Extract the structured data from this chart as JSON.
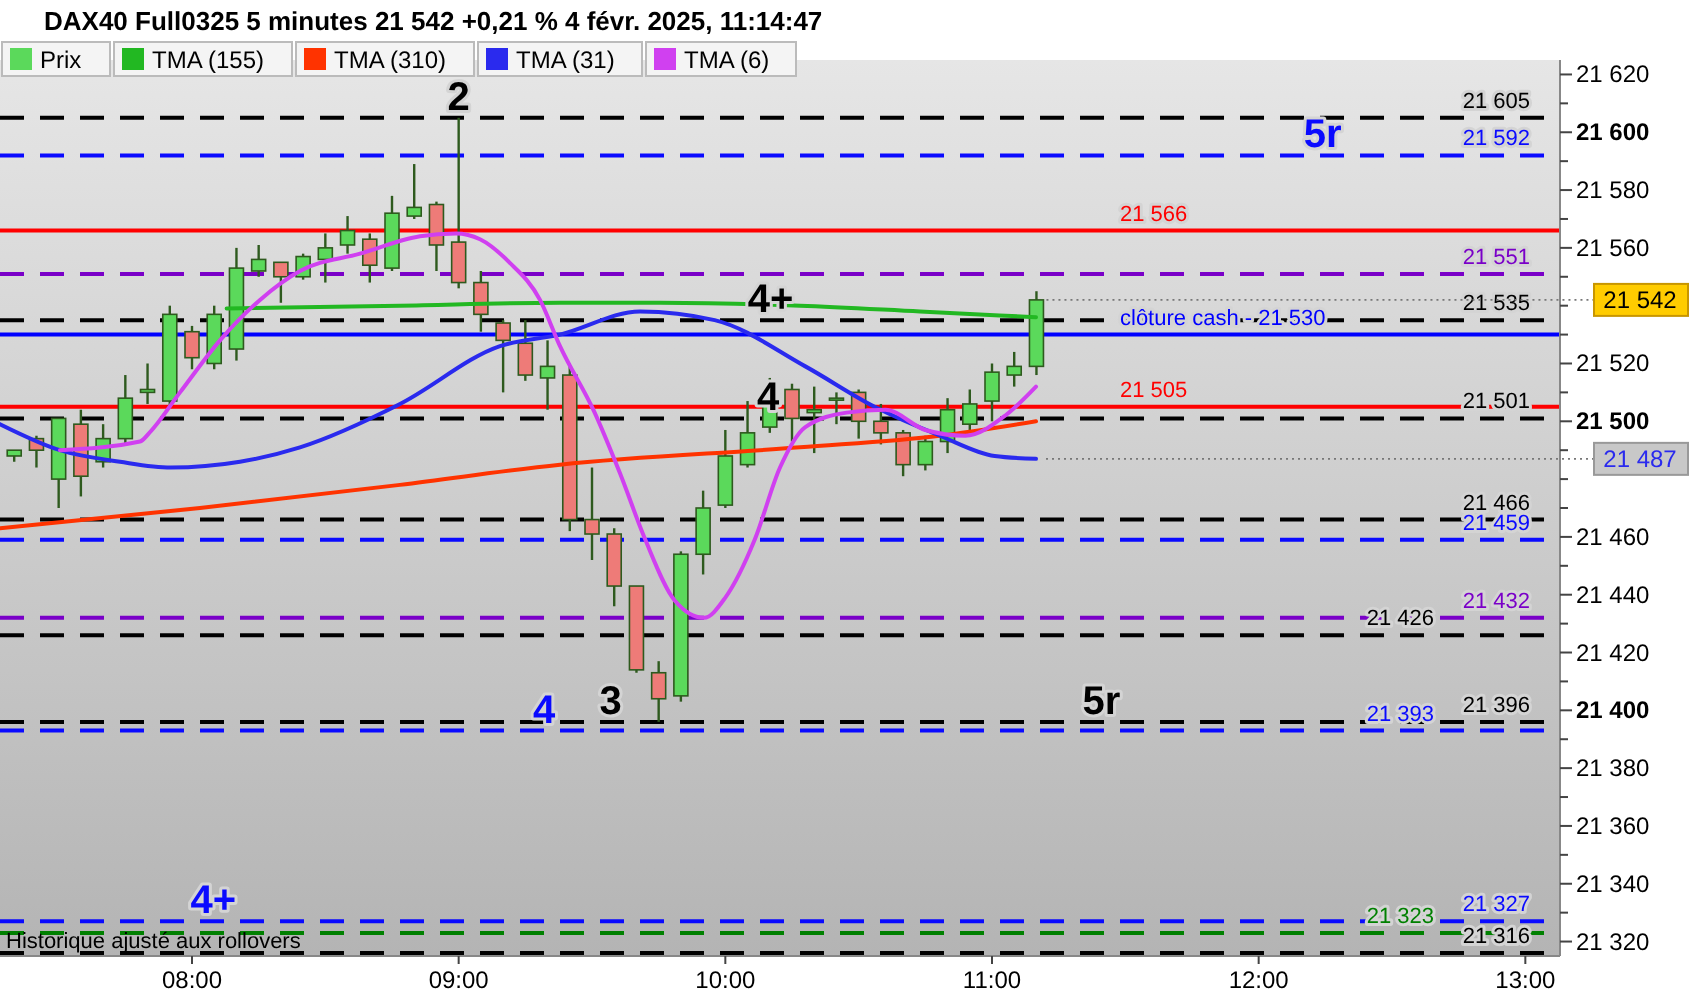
{
  "chart_data": {
    "type": "candlestick",
    "title": "DAX40 Full0325 5 minutes 21 542 +0,21 % 4 févr. 2025, 11:14:47",
    "legend": "top left",
    "grid": false,
    "xlim": [
      7.28,
      13.13
    ],
    "xticks": [
      {
        "value": 8,
        "label": "08:00"
      },
      {
        "value": 9,
        "label": "09:00"
      },
      {
        "value": 10,
        "label": "10:00"
      },
      {
        "value": 11,
        "label": "11:00"
      },
      {
        "value": 12,
        "label": "12:00"
      },
      {
        "value": 13,
        "label": "13:00"
      }
    ],
    "ylim": [
      21315,
      21625
    ],
    "yticks": [
      {
        "value": 21320,
        "label": "21 320"
      },
      {
        "value": 21330,
        "label": null
      },
      {
        "value": 21340,
        "label": "21 340"
      },
      {
        "value": 21350,
        "label": null
      },
      {
        "value": 21360,
        "label": "21 360"
      },
      {
        "value": 21370,
        "label": null
      },
      {
        "value": 21380,
        "label": "21 380"
      },
      {
        "value": 21390,
        "label": null
      },
      {
        "value": 21400,
        "label": "21 400"
      },
      {
        "value": 21410,
        "label": null
      },
      {
        "value": 21420,
        "label": "21 420"
      },
      {
        "value": 21430,
        "label": null
      },
      {
        "value": 21440,
        "label": "21 440"
      },
      {
        "value": 21450,
        "label": null
      },
      {
        "value": 21460,
        "label": "21 460"
      },
      {
        "value": 21470,
        "label": null
      },
      {
        "value": 21480,
        "label": null
      },
      {
        "value": 21490,
        "label": null
      },
      {
        "value": 21500,
        "label": "21 500"
      },
      {
        "value": 21510,
        "label": null
      },
      {
        "value": 21520,
        "label": "21 520"
      },
      {
        "value": 21530,
        "label": null
      },
      {
        "value": 21540,
        "label": null
      },
      {
        "value": 21550,
        "label": null
      },
      {
        "value": 21560,
        "label": "21 560"
      },
      {
        "value": 21570,
        "label": null
      },
      {
        "value": 21580,
        "label": "21 580"
      },
      {
        "value": 21590,
        "label": null
      },
      {
        "value": 21600,
        "label": "21 600"
      },
      {
        "value": 21610,
        "label": null
      },
      {
        "value": 21620,
        "label": "21 620"
      }
    ],
    "series": [
      {
        "name": "Prix",
        "type": "candlestick",
        "color": "#5bd95b",
        "x": [
          7.3333,
          7.4167,
          7.5,
          7.5833,
          7.6667,
          7.75,
          7.8333,
          7.9167,
          8,
          8.0833,
          8.1667,
          8.25,
          8.3333,
          8.4167,
          8.5,
          8.5833,
          8.6667,
          8.75,
          8.8333,
          8.9167,
          9,
          9.0833,
          9.1667,
          9.25,
          9.3333,
          9.4167,
          9.5,
          9.5833,
          9.6667,
          9.75,
          9.8333,
          9.9167,
          10,
          10.0833,
          10.1667,
          10.25,
          10.3333,
          10.4167,
          10.5,
          10.5833,
          10.6667,
          10.75,
          10.8333,
          10.9167,
          11,
          11.0833,
          11.1667
        ],
        "ohlc": [
          [
            21488,
            21490,
            21486,
            21490
          ],
          [
            21494,
            21495,
            21484,
            21490
          ],
          [
            21480,
            21501,
            21470,
            21501
          ],
          [
            21499,
            21504,
            21474,
            21481
          ],
          [
            21486,
            21499,
            21484,
            21494
          ],
          [
            21494,
            21516,
            21492,
            21508
          ],
          [
            21510,
            21520,
            21506,
            21511
          ],
          [
            21507,
            21540,
            21505,
            21537
          ],
          [
            21531,
            21533,
            21518,
            21522
          ],
          [
            21520,
            21540,
            21518,
            21537
          ],
          [
            21525,
            21560,
            21521,
            21553
          ],
          [
            21552,
            21561,
            21550,
            21556
          ],
          [
            21555,
            21555,
            21541,
            21550
          ],
          [
            21550,
            21558,
            21549,
            21557
          ],
          [
            21556,
            21565,
            21548,
            21560
          ],
          [
            21561,
            21571,
            21558,
            21566
          ],
          [
            21563,
            21565,
            21548,
            21554
          ],
          [
            21553,
            21578,
            21552,
            21572
          ],
          [
            21571,
            21589,
            21570,
            21574
          ],
          [
            21575,
            21576,
            21552,
            21561
          ],
          [
            21562,
            21605,
            21546,
            21548
          ],
          [
            21548,
            21552,
            21531,
            21537
          ],
          [
            21534,
            21535,
            21510,
            21528
          ],
          [
            21527,
            21535,
            21514,
            21516
          ],
          [
            21515,
            21528,
            21504,
            21519
          ],
          [
            21516,
            21520,
            21462,
            21466
          ],
          [
            21466,
            21484,
            21452,
            21461
          ],
          [
            21461,
            21463,
            21436,
            21443
          ],
          [
            21443,
            21443,
            21413,
            21414
          ],
          [
            21413,
            21417,
            21396,
            21404
          ],
          [
            21405,
            21455,
            21403,
            21454
          ],
          [
            21454,
            21476,
            21447,
            21470
          ],
          [
            21471,
            21497,
            21470,
            21488
          ],
          [
            21485,
            21507,
            21484,
            21496
          ],
          [
            21498,
            21515,
            21496,
            21510
          ],
          [
            21511,
            21513,
            21493,
            21501
          ],
          [
            21503,
            21512,
            21489,
            21504
          ],
          [
            21508,
            21510,
            21499,
            21508
          ],
          [
            21510,
            21511,
            21494,
            21500
          ],
          [
            21500,
            21506,
            21492,
            21496
          ],
          [
            21496,
            21497,
            21481,
            21485
          ],
          [
            21485,
            21495,
            21483,
            21493
          ],
          [
            21493,
            21508,
            21489,
            21504
          ],
          [
            21499,
            21511,
            21497,
            21506
          ],
          [
            21507,
            21520,
            21500,
            21517
          ],
          [
            21516,
            21524,
            21512,
            21519
          ],
          [
            21519,
            21545,
            21516,
            21542
          ]
        ],
        "colors": [
          "#5bd95b",
          "#ee7b78",
          "#5bd95b",
          "#ee7b78",
          "#5bd95b",
          "#5bd95b",
          "#5bd95b",
          "#5bd95b",
          "#ee7b78",
          "#5bd95b",
          "#5bd95b",
          "#5bd95b",
          "#ee7b78",
          "#5bd95b",
          "#5bd95b",
          "#5bd95b",
          "#ee7b78",
          "#5bd95b",
          "#5bd95b",
          "#ee7b78",
          "#ee7b78",
          "#ee7b78",
          "#ee7b78",
          "#ee7b78",
          "#5bd95b",
          "#ee7b78",
          "#ee7b78",
          "#ee7b78",
          "#ee7b78",
          "#ee7b78",
          "#5bd95b",
          "#5bd95b",
          "#5bd95b",
          "#5bd95b",
          "#5bd95b",
          "#ee7b78",
          "#5bd95b",
          "#5bd95b",
          "#ee7b78",
          "#ee7b78",
          "#ee7b78",
          "#5bd95b",
          "#5bd95b",
          "#5bd95b",
          "#5bd95b",
          "#5bd95b",
          "#5bd95b"
        ]
      },
      {
        "name": "TMA (155)",
        "type": "line",
        "color": "#22b822",
        "x": [
          8.13,
          8.78,
          9.38,
          9.755,
          10.28,
          10.73,
          11.165
        ],
        "values": [
          21539,
          21540,
          21541,
          21541,
          21540,
          21538,
          21536
        ]
      },
      {
        "name": "TMA (310)",
        "type": "line",
        "color": "#ff3300",
        "x": [
          7.28,
          8.03,
          8.78,
          9.38,
          10.28,
          10.805,
          11.165
        ],
        "values": [
          21463,
          21470,
          21478,
          21485,
          21491,
          21495,
          21500
        ]
      },
      {
        "name": "TMA (31)",
        "type": "line",
        "color": "#2a2aee",
        "x": [
          7.28,
          7.505,
          7.73,
          7.92,
          8.18,
          8.405,
          8.78,
          9.155,
          9.38,
          9.68,
          9.96,
          10.3,
          10.56,
          10.805,
          11.01,
          11.165
        ],
        "values": [
          21499,
          21490,
          21486,
          21484,
          21486,
          21491,
          21506,
          21526,
          21530,
          21538,
          21535,
          21519,
          21505,
          21495,
          21488,
          21487
        ]
      },
      {
        "name": "TMA (6)",
        "type": "line",
        "color": "#d040f0",
        "x": [
          7.505,
          7.805,
          7.84,
          7.955,
          8.105,
          8.255,
          8.405,
          8.63,
          8.855,
          8.99,
          9.08,
          9.19,
          9.305,
          9.38,
          9.51,
          9.605,
          9.7,
          9.81,
          9.92,
          10.0,
          10.11,
          10.205,
          10.3,
          10.455,
          10.6,
          10.75,
          10.9,
          11.05,
          11.165
        ],
        "values": [
          21490,
          21493,
          21496,
          21510,
          21528,
          21542,
          21552,
          21558,
          21564,
          21565,
          21563,
          21555,
          21542,
          21526,
          21503,
          21482,
          21459,
          21438,
          21432,
          21439,
          21459,
          21484,
          21498,
          21503,
          21504,
          21497,
          21495,
          21502,
          21512
        ]
      }
    ],
    "ref_lines": [
      {
        "axis": "y",
        "value": 21605,
        "label": "21 605",
        "color": "#000000",
        "line_style": "dashed"
      },
      {
        "axis": "y",
        "value": 21592,
        "label": "21 592",
        "color": "#0a0aff",
        "line_style": "dashed"
      },
      {
        "axis": "y",
        "value": 21566,
        "label": "21 566",
        "color": "#ff0000",
        "line_style": "solid"
      },
      {
        "axis": "y",
        "value": 21551,
        "label": "21 551",
        "color": "#7a00c8",
        "line_style": "dashed"
      },
      {
        "axis": "y",
        "value": 21535,
        "label": "21 535",
        "color": "#000000",
        "line_style": "dashed"
      },
      {
        "axis": "y",
        "value": 21530,
        "label": "clôture cash -  21 530",
        "color": "#0000ff",
        "line_style": "solid"
      },
      {
        "axis": "y",
        "value": 21505,
        "label": "21 505",
        "color": "#ff0000",
        "line_style": "solid"
      },
      {
        "axis": "y",
        "value": 21501,
        "label": "21 501",
        "color": "#000000",
        "line_style": "dashed"
      },
      {
        "axis": "y",
        "value": 21466,
        "label": "21 466",
        "color": "#000000",
        "line_style": "dashed"
      },
      {
        "axis": "y",
        "value": 21459,
        "label": "21 459",
        "color": "#0a0aff",
        "line_style": "dashed"
      },
      {
        "axis": "y",
        "value": 21432,
        "label": "21 432",
        "color": "#7a00c8",
        "line_style": "dashed"
      },
      {
        "axis": "y",
        "value": 21426,
        "label": "21 426",
        "color": "#000000",
        "line_style": "dashed"
      },
      {
        "axis": "y",
        "value": 21396,
        "label": "21 396",
        "color": "#000000",
        "line_style": "dashed"
      },
      {
        "axis": "y",
        "value": 21393,
        "label": "21 393",
        "color": "#0a0aff",
        "line_style": "dashed"
      },
      {
        "axis": "y",
        "value": 21327,
        "label": "21 327",
        "color": "#0a0aff",
        "line_style": "dashed"
      },
      {
        "axis": "y",
        "value": 21323,
        "label": "21 323",
        "color": "#008000",
        "line_style": "dashed"
      },
      {
        "axis": "y",
        "value": 21316,
        "label": "21 316",
        "color": "#000000",
        "line_style": "dashed"
      }
    ],
    "annotations": [
      {
        "text": "2",
        "x": 9,
        "y": 21605
      },
      {
        "text": "3",
        "x": 9.57,
        "y": 21396
      },
      {
        "text": "4",
        "x": 9.32,
        "y": 21393
      },
      {
        "text": "4+",
        "x": 10.17,
        "y": 21535
      },
      {
        "text": "4",
        "x": 10.16,
        "y": 21501
      },
      {
        "text": "5r",
        "x": 12.24,
        "y": 21592
      },
      {
        "text": "5r",
        "x": 11.41,
        "y": 21396
      },
      {
        "text": "4+",
        "x": 8.08,
        "y": 21327
      },
      {
        "text": "21 542",
        "x": 11.1667,
        "y": 21542
      },
      {
        "text": "21 487",
        "x": 11.165,
        "y": 21487
      },
      "Historique ajusté aux rollovers"
    ]
  }
}
